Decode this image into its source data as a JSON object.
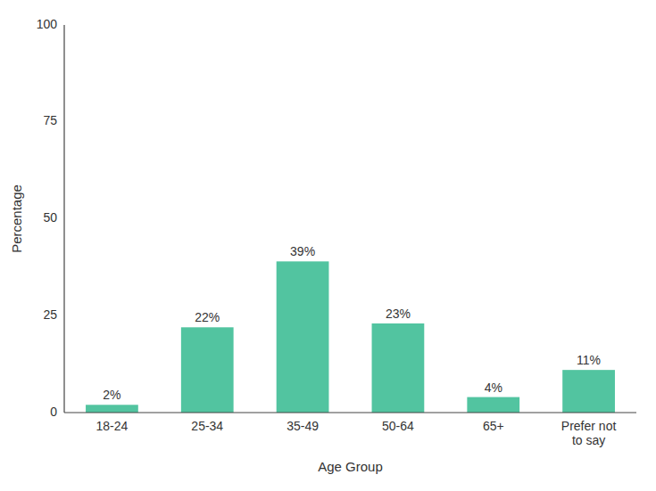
{
  "chart_data": {
    "type": "bar",
    "categories": [
      "18-24",
      "25-34",
      "35-49",
      "50-64",
      "65+",
      "Prefer not\nto say"
    ],
    "values": [
      2,
      22,
      39,
      23,
      4,
      11
    ],
    "value_labels": [
      "2%",
      "22%",
      "39%",
      "23%",
      "4%",
      "11%"
    ],
    "data_labels": true,
    "color": "#52C4A0",
    "xlabel": "Age Group",
    "ylabel": "Percentage",
    "ylim": [
      0,
      100
    ],
    "yticks": [
      0,
      25,
      50,
      75,
      100
    ],
    "grid": false
  }
}
